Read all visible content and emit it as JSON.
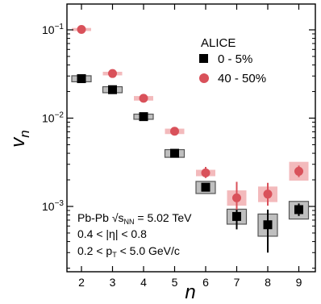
{
  "chart_data": {
    "type": "scatter",
    "title": "",
    "xlabel": "n",
    "ylabel": "v_n",
    "yscale": "log",
    "xlim": [
      1.4,
      9.6
    ],
    "ylim": [
      0.0003,
      0.15
    ],
    "x_ticks": [
      "2",
      "3",
      "4",
      "5",
      "6",
      "7",
      "8",
      "9"
    ],
    "y_ticks": [
      {
        "value": 0.1,
        "base": "10",
        "exp": "−1"
      },
      {
        "value": 0.01,
        "base": "10",
        "exp": "−2"
      },
      {
        "value": 0.001,
        "base": "10",
        "exp": "−3"
      }
    ],
    "legend": {
      "title": "ALICE",
      "placement": "top-right",
      "entries": [
        "0 - 5%",
        "40 - 50%"
      ]
    },
    "annotations": {
      "system": "Pb-Pb",
      "energy_sym": "√s",
      "energy_sub": "NN",
      "energy_val": " = 5.02 TeV",
      "eta_range": "0.4 < |η| < 0.8",
      "pt_pre": "0.2 < p",
      "pt_sub": "T",
      "pt_post": " < 5.0 GeV/c"
    },
    "series": [
      {
        "name": "0 - 5%",
        "marker": "square",
        "color": "#000000",
        "sys_color": "#a9a9a9",
        "x": [
          2,
          3,
          4,
          5,
          6,
          7,
          8,
          9
        ],
        "y": [
          0.028,
          0.021,
          0.0104,
          0.004,
          0.00165,
          0.00077,
          0.00062,
          0.00092
        ],
        "stat_err": [
          [
            0.028,
            0.028
          ],
          [
            0.021,
            0.021
          ],
          [
            0.0104,
            0.0104
          ],
          [
            0.004,
            0.004
          ],
          [
            0.00165,
            0.00165
          ],
          [
            0.00055,
            0.00098
          ],
          [
            0.0003,
            0.00092
          ],
          [
            0.00078,
            0.00108
          ]
        ],
        "sys_err": [
          [
            0.0258,
            0.0302
          ],
          [
            0.0194,
            0.0227
          ],
          [
            0.0097,
            0.0111
          ],
          [
            0.0036,
            0.0044
          ],
          [
            0.0014,
            0.00192
          ],
          [
            0.00063,
            0.00093
          ],
          [
            0.00046,
            0.00082
          ],
          [
            0.00072,
            0.00114
          ]
        ]
      },
      {
        "name": "40 - 50%",
        "marker": "circle",
        "color": "#d9515a",
        "sys_color": "#f0a9ab",
        "x": [
          2,
          3,
          4,
          5,
          6,
          7,
          8,
          9
        ],
        "y": [
          0.101,
          0.032,
          0.0168,
          0.0071,
          0.0024,
          0.00125,
          0.00138,
          0.0025
        ],
        "stat_err": [
          [
            0.101,
            0.101
          ],
          [
            0.032,
            0.032
          ],
          [
            0.0168,
            0.0168
          ],
          [
            0.0071,
            0.0071
          ],
          [
            0.0021,
            0.0028
          ],
          [
            0.00092,
            0.0019
          ],
          [
            0.00102,
            0.00185
          ],
          [
            0.00215,
            0.0029
          ]
        ],
        "sys_err": [
          [
            0.097,
            0.105
          ],
          [
            0.0305,
            0.0335
          ],
          [
            0.0158,
            0.0178
          ],
          [
            0.0066,
            0.0076
          ],
          [
            0.0022,
            0.0026
          ],
          [
            0.00102,
            0.00152
          ],
          [
            0.00112,
            0.00168
          ],
          [
            0.00196,
            0.0032
          ]
        ]
      }
    ]
  }
}
